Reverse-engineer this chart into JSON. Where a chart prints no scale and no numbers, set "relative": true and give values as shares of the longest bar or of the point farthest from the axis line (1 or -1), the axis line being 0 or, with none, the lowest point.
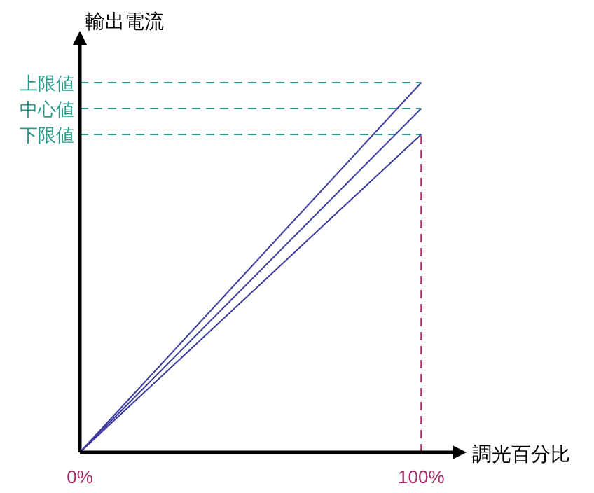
{
  "chart_data": {
    "type": "line",
    "relative": true,
    "xlabel": "調光百分比",
    "ylabel": "輸出電流",
    "xlim": [
      0,
      110
    ],
    "xticks": [
      {
        "value": 0,
        "label": "0%"
      },
      {
        "value": 100,
        "label": "100%"
      }
    ],
    "x": [
      0,
      100
    ],
    "series": [
      {
        "color": "#3b3b9e",
        "values": [
          0,
          1
        ]
      },
      {
        "color": "#3b3b9e",
        "values": [
          0,
          0.93
        ]
      },
      {
        "color": "#3b3b9e",
        "values": [
          0,
          0.86
        ]
      }
    ],
    "ref_lines": [
      {
        "axis": "y",
        "value": 1,
        "label": "上限値",
        "color": "#2a9a8c",
        "line_style": "dashed"
      },
      {
        "axis": "y",
        "value": 0.93,
        "label": "中心値",
        "color": "#2a9a8c",
        "line_style": "dashed"
      },
      {
        "axis": "y",
        "value": 0.86,
        "label": "下限値",
        "color": "#2a9a8c",
        "line_style": "dashed"
      },
      {
        "axis": "x",
        "value": 100,
        "color": "#a0306a",
        "line_style": "dashed"
      }
    ],
    "line_style": "solid"
  }
}
